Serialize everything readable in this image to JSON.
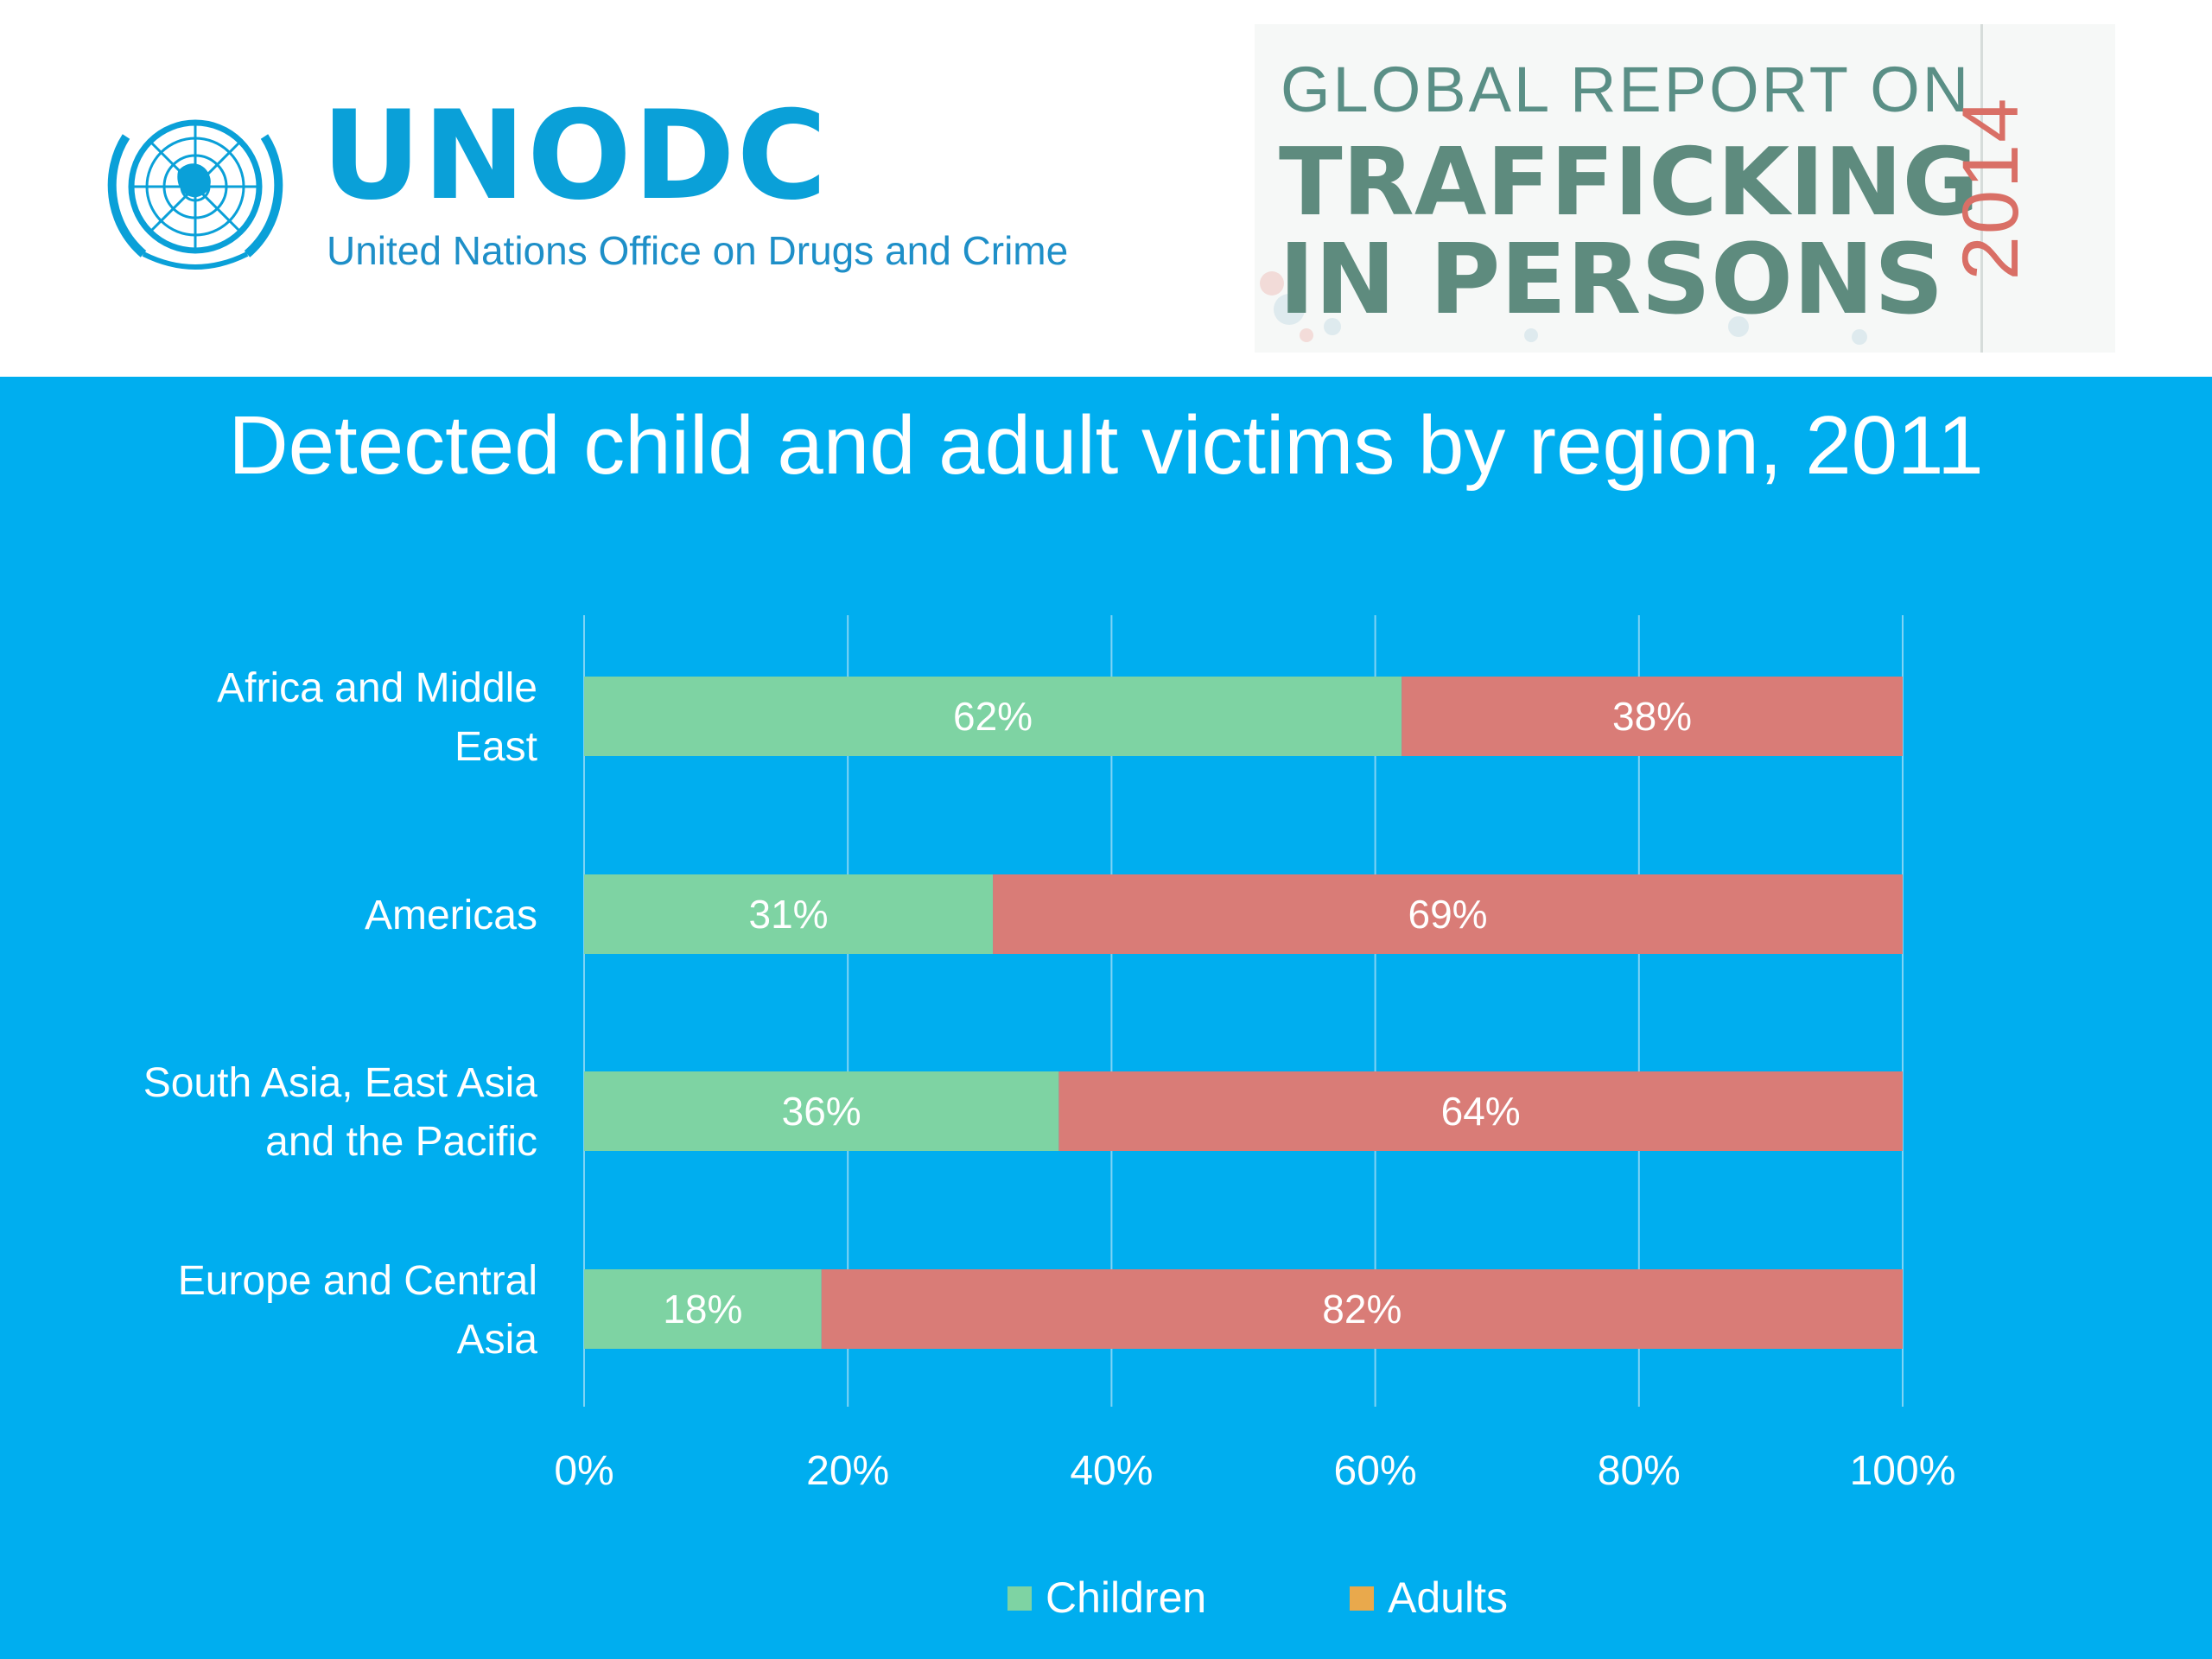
{
  "header": {
    "logo_name": "UNODC",
    "logo_subtitle": "United Nations Office on Drugs and Crime",
    "report_line1": "GLOBAL REPORT ON",
    "report_line2": "TRAFFICKING",
    "report_line3": "IN PERSONS",
    "report_year": "2014"
  },
  "colors": {
    "background": "#00AEEF",
    "children": "#7ED3A3",
    "adults": "#D97C77",
    "adults_legend": "#E9A94C"
  },
  "chart_data": {
    "type": "bar",
    "orientation": "horizontal",
    "stacked": true,
    "title": "Detected child and adult victims by region, 2011",
    "categories": [
      "Africa and Middle East",
      "Americas",
      "South Asia, East Asia and the Pacific",
      "Europe and Central Asia"
    ],
    "category_label_lines": [
      [
        "Africa and Middle",
        "East"
      ],
      [
        "Americas"
      ],
      [
        "South Asia, East Asia",
        "and the Pacific"
      ],
      [
        "Europe and Central",
        "Asia"
      ]
    ],
    "series": [
      {
        "name": "Children",
        "values": [
          62,
          31,
          36,
          18
        ],
        "labels": [
          "62%",
          "31%",
          "36%",
          "18%"
        ]
      },
      {
        "name": "Adults",
        "values": [
          38,
          69,
          64,
          82
        ],
        "labels": [
          "38%",
          "69%",
          "64%",
          "82%"
        ]
      }
    ],
    "xlim": [
      0,
      100
    ],
    "x_ticks": [
      0,
      20,
      40,
      60,
      80,
      100
    ],
    "x_tick_labels": [
      "0%",
      "20%",
      "40%",
      "60%",
      "80%",
      "100%"
    ],
    "grid": true,
    "legend_position": "bottom"
  }
}
